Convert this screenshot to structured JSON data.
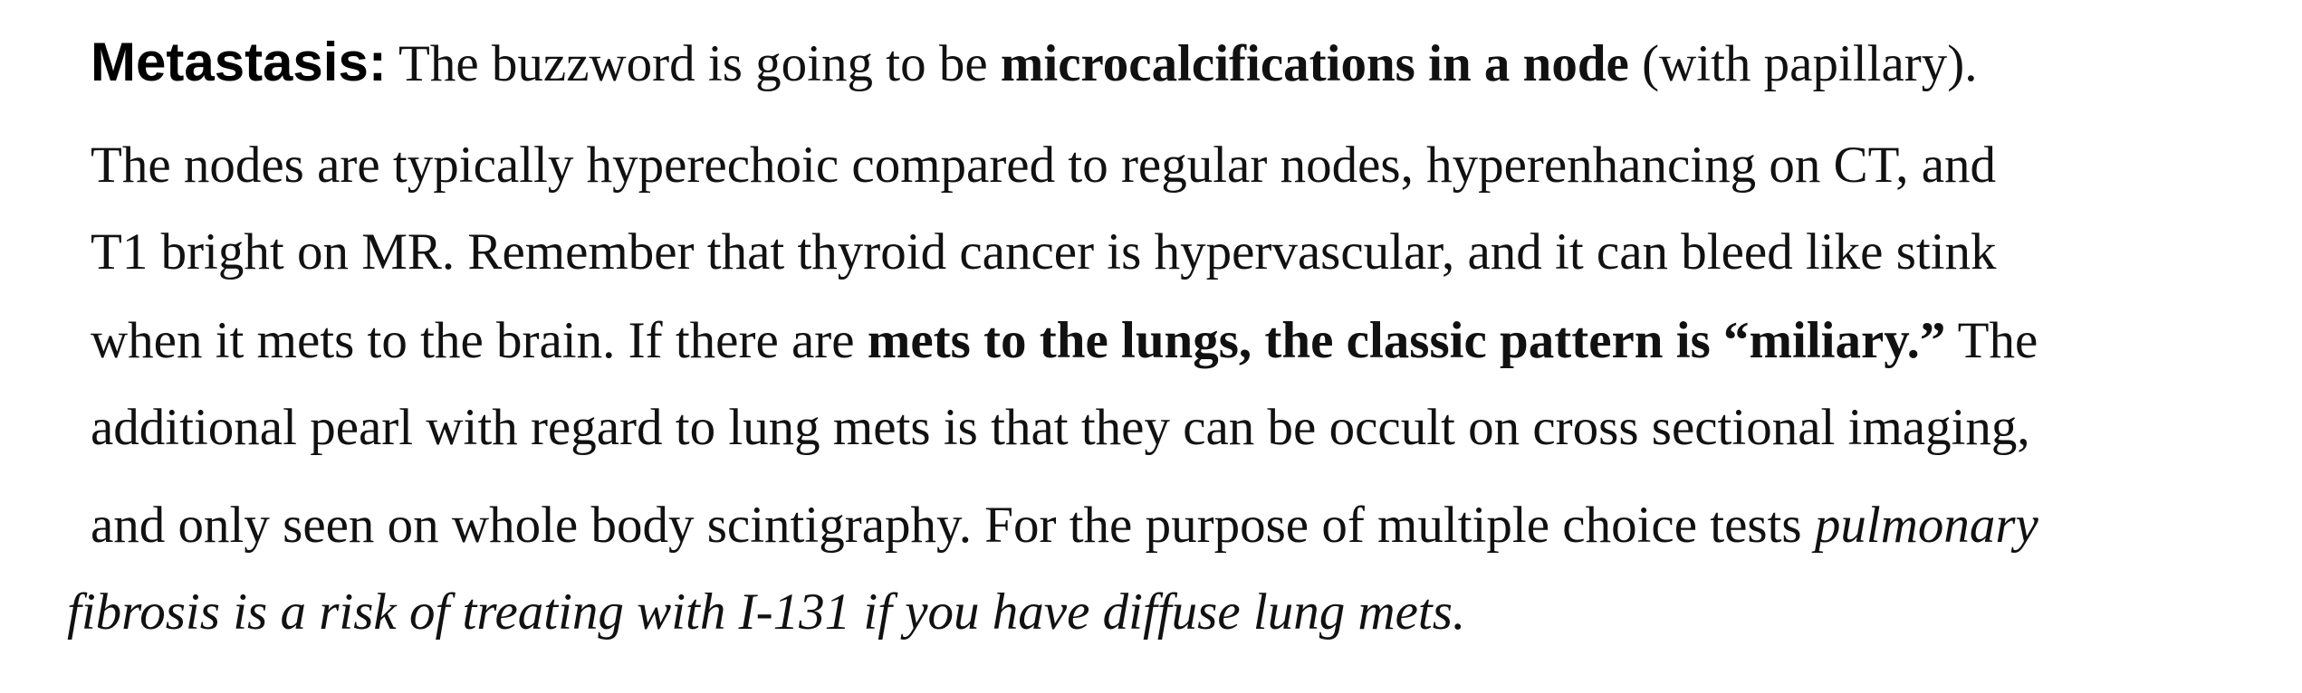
{
  "section": {
    "heading": "Metastasis:",
    "lines": [
      [
        {
          "t": " The buzzword is going to be ",
          "s": "normal"
        },
        {
          "t": "microcalcifications in a node",
          "s": "bold"
        },
        {
          "t": " (with papillary).",
          "s": "normal"
        }
      ],
      [
        {
          "t": "The nodes are typically hyperechoic compared to regular nodes, hyperenhancing on CT, and",
          "s": "normal"
        }
      ],
      [
        {
          "t": "T1 bright on MR. Remember that thyroid cancer is hypervascular, and it can bleed like stink",
          "s": "normal"
        }
      ],
      [
        {
          "t": "when it mets to the brain. If there are ",
          "s": "normal"
        },
        {
          "t": "mets to the lungs, the classic pattern is “miliary.”",
          "s": "bold"
        },
        {
          "t": " The",
          "s": "normal"
        }
      ],
      [
        {
          "t": "additional pearl with regard to lung mets is that they can be occult on cross sectional imaging,",
          "s": "normal"
        }
      ],
      [
        {
          "t": "and only seen on whole body scintigraphy. For the purpose of multiple choice tests ",
          "s": "normal"
        },
        {
          "t": "pulmonary",
          "s": "italic"
        }
      ],
      [
        {
          "t": "fibrosis is a risk of treating with I-131 if you have diffuse lung mets.",
          "s": "italic"
        }
      ]
    ]
  }
}
